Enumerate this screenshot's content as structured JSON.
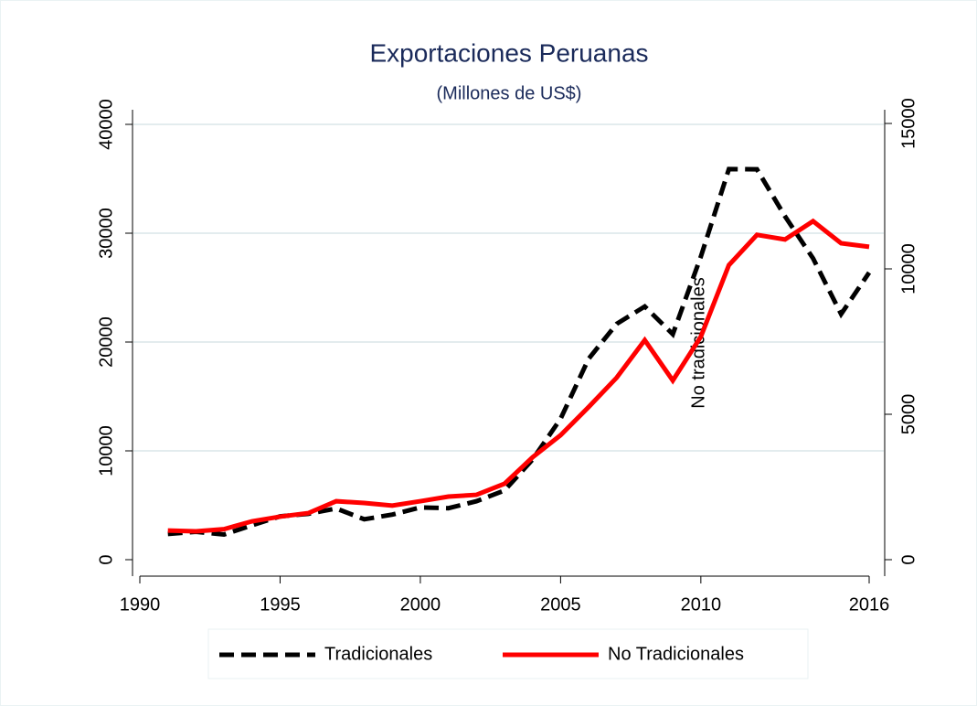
{
  "chart_data": {
    "type": "line",
    "title": "Exportaciones Peruanas",
    "subtitle": "(Millones de US$)",
    "x": [
      1991,
      1992,
      1993,
      1994,
      1995,
      1996,
      1997,
      1998,
      1999,
      2000,
      2001,
      2002,
      2003,
      2004,
      2005,
      2006,
      2007,
      2008,
      2009,
      2010,
      2011,
      2012,
      2013,
      2014,
      2015,
      2016
    ],
    "series": [
      {
        "name": "Tradicionales",
        "color": "#000000",
        "dash": true,
        "axis": "y",
        "values": [
          2359,
          2562,
          2310,
          3157,
          3984,
          4214,
          4705,
          3712,
          4142,
          4804,
          4730,
          5369,
          6356,
          9199,
          12950,
          18461,
          21666,
          23266,
          20720,
          27850,
          35896,
          35869,
          31553,
          27686,
          22564,
          26380
        ]
      },
      {
        "name": "No Tradicionales",
        "color": "#ff0000",
        "dash": false,
        "axis": "y2",
        "values": [
          1002,
          975,
          1050,
          1320,
          1480,
          1600,
          2010,
          1950,
          1860,
          2010,
          2170,
          2230,
          2610,
          3520,
          4280,
          5250,
          6260,
          7550,
          6160,
          7670,
          10130,
          11170,
          11010,
          11640,
          10880,
          10760
        ]
      }
    ],
    "y2label": "No tradicionales",
    "xlim": [
      1990,
      2016
    ],
    "xticks": [
      1990,
      1995,
      2000,
      2005,
      2010,
      2016
    ],
    "ylim": [
      0,
      40000
    ],
    "yticks": [
      0,
      10000,
      20000,
      30000,
      40000
    ],
    "y2lim": [
      0,
      15000
    ],
    "y2ticks": [
      0,
      5000,
      10000,
      15000
    ],
    "grid": true,
    "legend": "bottom"
  }
}
